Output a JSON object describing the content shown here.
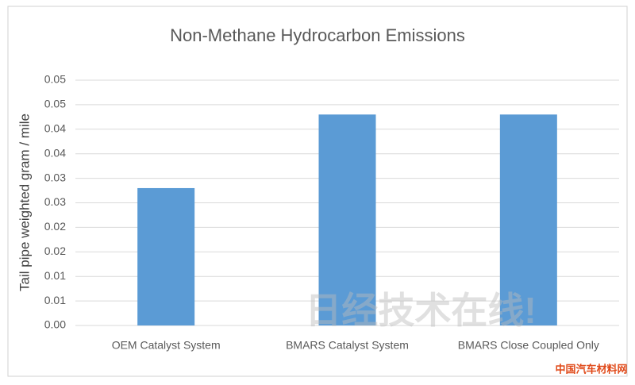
{
  "chart_data": {
    "type": "bar",
    "title": "Non-Methane Hydrocarbon Emissions",
    "y_label": "Tail pipe weighted gram / mile",
    "categories": [
      "OEM Catalyst System",
      "BMARS Catalyst System",
      "BMARS Close Coupled Only"
    ],
    "values": [
      0.028,
      0.043,
      0.043
    ],
    "color": "#5b9bd5",
    "ylim": [
      0,
      0.05
    ],
    "yticks": [
      {
        "value": 0,
        "label": "0.00"
      },
      {
        "value": 0.005,
        "label": "0.01"
      },
      0.01,
      {
        "value": 0.015,
        "label": "0.02"
      },
      0.02,
      {
        "value": 0.025,
        "label": "0.03"
      },
      0.03,
      {
        "value": 0.035,
        "label": "0.04"
      },
      0.04,
      {
        "value": 0.045,
        "label": "0.05"
      },
      0.05
    ],
    "grid": true,
    "watermark": "日经技术在线!",
    "logo_text": "中国汽车材料网"
  }
}
